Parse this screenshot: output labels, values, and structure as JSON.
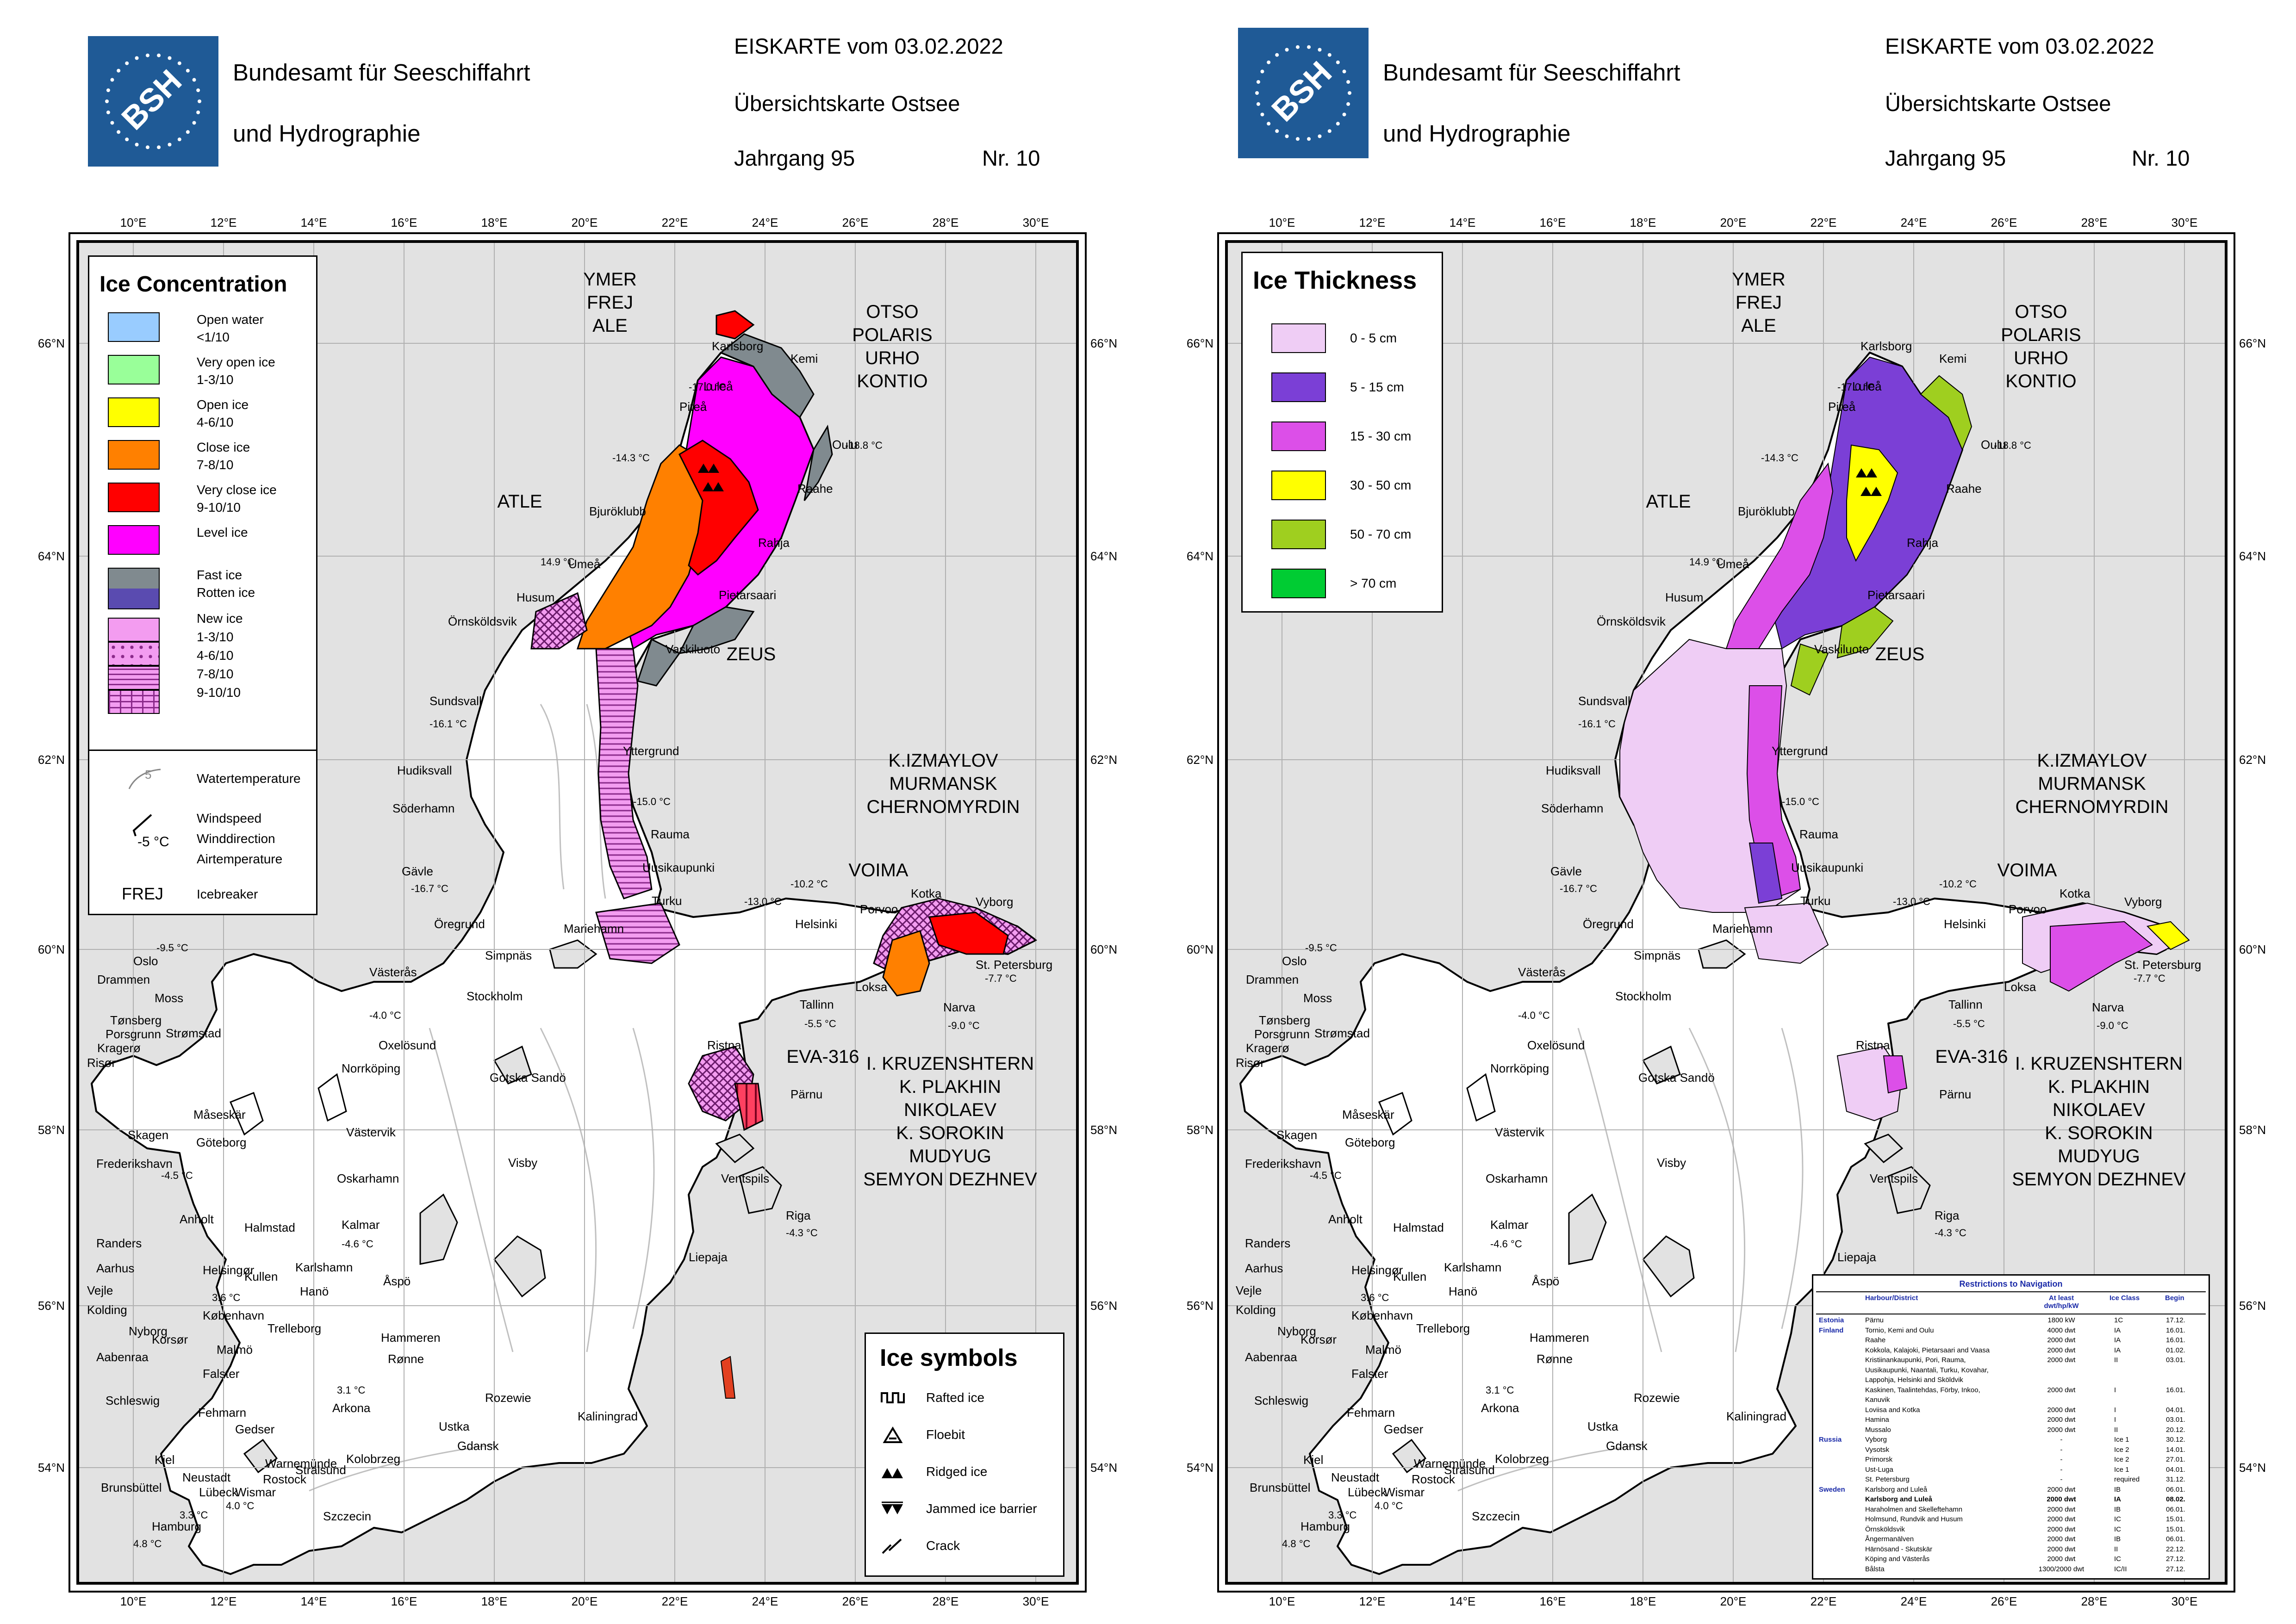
{
  "header": {
    "org_line1": "Bundesamt für Seeschiffahrt",
    "org_line2": "und Hydrographie",
    "logo_text": "BSH",
    "title": "EISKARTE vom 03.02.2022",
    "subtitle": "Übersichtskarte Ostsee",
    "jahrgang": "Jahrgang 95",
    "nr": "Nr. 10"
  },
  "axes": {
    "lon_labels": [
      "10°E",
      "12°E",
      "14°E",
      "16°E",
      "18°E",
      "20°E",
      "22°E",
      "24°E",
      "26°E",
      "28°E",
      "30°E"
    ],
    "lat_labels": [
      "66°N",
      "64°N",
      "62°N",
      "60°N",
      "58°N",
      "56°N",
      "54°N"
    ]
  },
  "colors": {
    "land": "#e2e2e2",
    "sea": "#ffffff",
    "open_water": "#99ccff",
    "very_open_ice": "#99ff99",
    "open_ice": "#ffff00",
    "close_ice": "#ff8000",
    "very_close_ice": "#ff0000",
    "level_ice": "#ff00ff",
    "fast_ice": "#808a8f",
    "rotten_ice": "#5a4bb0",
    "new_ice": "#f39cf0",
    "th_0_5": "#efcdf5",
    "th_5_15": "#7b3fd6",
    "th_15_30": "#dc4fe8",
    "th_30_50": "#ffff00",
    "th_50_70": "#9fcf1f",
    "th_70": "#00cc33"
  },
  "legend_concentration": {
    "title": "Ice Concentration",
    "items": [
      {
        "label1": "Open water",
        "label2": "<1/10"
      },
      {
        "label1": "Very open ice",
        "label2": "1-3/10"
      },
      {
        "label1": "Open ice",
        "label2": "4-6/10"
      },
      {
        "label1": "Close ice",
        "label2": "7-8/10"
      },
      {
        "label1": "Very close ice",
        "label2": "9-10/10"
      },
      {
        "label1": "Level ice",
        "label2": ""
      },
      {
        "label1": "Fast ice",
        "label2": "Rotten ice"
      }
    ],
    "new_ice": [
      "New ice",
      "1-3/10",
      "4-6/10",
      "7-8/10",
      "9-10/10"
    ],
    "water_temp": "Watertemperature",
    "water_temp_value": "5",
    "wind_value": "-5 °C",
    "wind_lines": [
      "Windspeed",
      "Winddirection",
      "Airtemperature"
    ],
    "icebreaker_abbr": "FREJ",
    "icebreaker": "Icebreaker"
  },
  "legend_symbols": {
    "title": "Ice symbols",
    "items": [
      "Rafted ice",
      "Floebit",
      "Ridged ice",
      "Jammed ice barrier",
      "Crack"
    ]
  },
  "legend_thickness": {
    "title": "Ice Thickness",
    "items": [
      "0 - 5 cm",
      "5 - 15 cm",
      "15 - 30 cm",
      "30 - 50 cm",
      "50 - 70 cm",
      "> 70 cm"
    ]
  },
  "icebreakers": [
    {
      "lines": [
        "YMER",
        "FREJ",
        "ALE"
      ]
    },
    {
      "lines": [
        "OTSO",
        "POLARIS",
        "URHO",
        "KONTIO"
      ]
    },
    {
      "lines": [
        "ATLE"
      ]
    },
    {
      "lines": [
        "ZEUS"
      ]
    },
    {
      "lines": [
        "K.IZMAYLOV",
        "MURMANSK",
        "CHERNOMYRDIN"
      ]
    },
    {
      "lines": [
        "VOIMA"
      ]
    },
    {
      "lines": [
        "EVA-316"
      ]
    },
    {
      "lines": [
        "I. KRUZENSHTERN",
        "K. PLAKHIN",
        "NIKOLAEV",
        "K. SOROKIN",
        "MUDYUG",
        "SEMYON DEZHNEV"
      ]
    }
  ],
  "places": [
    "Karlsborg",
    "Kemi",
    "Luleå",
    "Piteå",
    "Oulu",
    "Raahe",
    "Bjuröklubb",
    "Rahja",
    "Umeå",
    "Pietarsaari",
    "Husum",
    "Örnsköldsvik",
    "Vaskiluoto",
    "Sundsvall",
    "Yttergrund",
    "Hudiksvall",
    "Söderhamn",
    "Rauma",
    "Gävle",
    "Uusikaupunki",
    "Kotka",
    "Vyborg",
    "Porvoo",
    "Turku",
    "Helsinki",
    "Öregrund",
    "Mariehamn",
    "St. Petersburg",
    "Simpnäs",
    "Västerås",
    "Stockholm",
    "Loksa",
    "Tallinn",
    "Narva",
    "Oxelösund",
    "Norrköping",
    "Ristna",
    "Gotska Sandö",
    "Pärnu",
    "Västervik",
    "Visby",
    "Oskarhamn",
    "Ventspils",
    "Kalmar",
    "Riga",
    "Liepaja",
    "Karlshamn",
    "Hanö",
    "Åspö",
    "Hammeren",
    "Rønne",
    "Arkona",
    "Rozewie",
    "Gedser",
    "Ustka",
    "Gdansk",
    "Kaliningrad",
    "Kolobrzeg",
    "Szczecin",
    "Rostock",
    "Warnemünde",
    "Stralsund",
    "Wismar",
    "Lübeck",
    "Kiel",
    "Hamburg",
    "Brunsbüttel",
    "Neustadt",
    "Oslo",
    "Drammen",
    "Moss",
    "Tønsberg",
    "Porsgrunn",
    "Strømstad",
    "Kragerø",
    "Risør",
    "Skagen",
    "Frederikshavn",
    "Göteborg",
    "Måseskär",
    "Anholt",
    "Halmstad",
    "Randers",
    "Aarhus",
    "Helsingør",
    "Kullen",
    "København",
    "Vejle",
    "Kolding",
    "Nyborg",
    "Korsør",
    "Trelleborg",
    "Falster",
    "Aabenraa",
    "Schleswig",
    "Fehmarn",
    "Malmö"
  ],
  "temps": [
    "-17.0 °C",
    "-18.8 °C",
    "-14.3 °C",
    "14.9 °C",
    "-16.1 °C",
    "-15.0 °C",
    "-16.7 °C",
    "-13.0 °C",
    "-10.2 °C",
    "-7.7 °C",
    "-9.5 °C",
    "-4.0 °C",
    "-5.5 °C",
    "-9.0 °C",
    "-4.5 °C",
    "-4.6 °C",
    "-4.3 °C",
    "3.6 °C",
    "3.1 °C",
    "3.3 °C",
    "4.0 °C",
    "4.8 °C"
  ],
  "restrictions": {
    "title": "Restrictions to Navigation",
    "headers": [
      "Harbour/District",
      "At least dwt/hp/kW",
      "Ice Class",
      "Begin"
    ],
    "rows": [
      {
        "country": "Estonia",
        "harbour": "Pärnu",
        "dwt": "1800 kW",
        "cls": "1C",
        "begin": "17.12."
      },
      {
        "country": "Finland",
        "harbour": "Tornio, Kemi and Oulu",
        "dwt": "4000 dwt",
        "cls": "IA",
        "begin": "16.01."
      },
      {
        "country": "",
        "harbour": "Raahe",
        "dwt": "2000 dwt",
        "cls": "IA",
        "begin": "16.01."
      },
      {
        "country": "",
        "harbour": "Kokkola, Kalajoki, Pietarsaari and Vaasa",
        "dwt": "2000 dwt",
        "cls": "IA",
        "begin": "01.02."
      },
      {
        "country": "",
        "harbour": "Kristiinankaupunki, Pori, Rauma,",
        "dwt": "2000 dwt",
        "cls": "II",
        "begin": "03.01."
      },
      {
        "country": "",
        "harbour": "Uusikaupunki, Naantali, Turku, Kovahar,",
        "dwt": "",
        "cls": "",
        "begin": ""
      },
      {
        "country": "",
        "harbour": "Lappohja, Helsinki and Sköldvik",
        "dwt": "",
        "cls": "",
        "begin": ""
      },
      {
        "country": "",
        "harbour": "Kaskinen, Taalintehdas, Förby, Inkoo,",
        "dwt": "2000 dwt",
        "cls": "I",
        "begin": "16.01."
      },
      {
        "country": "",
        "harbour": "Kanuvik",
        "dwt": "",
        "cls": "",
        "begin": ""
      },
      {
        "country": "",
        "harbour": "Loviisa and Kotka",
        "dwt": "2000 dwt",
        "cls": "I",
        "begin": "04.01."
      },
      {
        "country": "",
        "harbour": "Hamina",
        "dwt": "2000 dwt",
        "cls": "I",
        "begin": "03.01."
      },
      {
        "country": "",
        "harbour": "Mussalo",
        "dwt": "2000 dwt",
        "cls": "II",
        "begin": "20.12."
      },
      {
        "country": "Russia",
        "harbour": "Vyborg",
        "dwt": "-",
        "cls": "Ice 1",
        "begin": "30.12."
      },
      {
        "country": "",
        "harbour": "Vysotsk",
        "dwt": "-",
        "cls": "Ice 2",
        "begin": "14.01."
      },
      {
        "country": "",
        "harbour": "Primorsk",
        "dwt": "-",
        "cls": "Ice 2",
        "begin": "27.01."
      },
      {
        "country": "",
        "harbour": "Ust-Luga",
        "dwt": "-",
        "cls": "Ice 1",
        "begin": "04.01."
      },
      {
        "country": "",
        "harbour": "St. Petersburg",
        "dwt": "-",
        "cls": "required",
        "begin": "31.12."
      },
      {
        "country": "Sweden",
        "harbour": "Karlsborg and Luleå",
        "dwt": "2000 dwt",
        "cls": "IB",
        "begin": "06.01."
      },
      {
        "country": "",
        "harbour": "Karlsborg and Luleå",
        "dwt": "2000 dwt",
        "cls": "IA",
        "begin": "08.02."
      },
      {
        "country": "",
        "harbour": "Haraholmen and Skelleftehamn",
        "dwt": "2000 dwt",
        "cls": "IB",
        "begin": "06.01."
      },
      {
        "country": "",
        "harbour": "Holmsund, Rundvik and Husum",
        "dwt": "2000 dwt",
        "cls": "IC",
        "begin": "15.01."
      },
      {
        "country": "",
        "harbour": "Örnsköldsvik",
        "dwt": "2000 dwt",
        "cls": "IC",
        "begin": "15.01."
      },
      {
        "country": "",
        "harbour": "Ångermanälven",
        "dwt": "2000 dwt",
        "cls": "IB",
        "begin": "06.01."
      },
      {
        "country": "",
        "harbour": "Härnösand - Skutskär",
        "dwt": "2000 dwt",
        "cls": "II",
        "begin": "22.12."
      },
      {
        "country": "",
        "harbour": "Köping and Västerås",
        "dwt": "2000 dwt",
        "cls": "IC",
        "begin": "27.12."
      },
      {
        "country": "",
        "harbour": "Bålsta",
        "dwt": "1300/2000 dwt",
        "cls": "IC/II",
        "begin": "27.12."
      }
    ]
  }
}
